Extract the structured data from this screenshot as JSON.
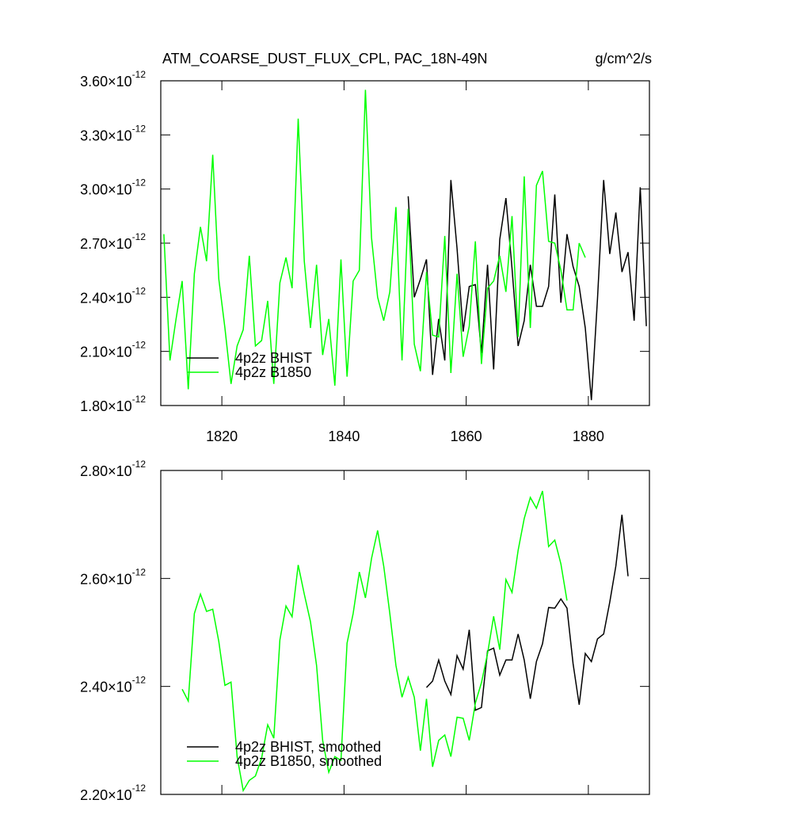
{
  "chart_data": [
    {
      "type": "line",
      "title": "ATM_COARSE_DUST_FLUX_CPL, PAC_18N-49N",
      "units": "g/cm^2/s",
      "xlim": [
        1810,
        1890
      ],
      "xticks": [
        1820,
        1840,
        1860,
        1880
      ],
      "show_xtick_labels": true,
      "ylim": [
        1.8e-12,
        3.6e-12
      ],
      "yticks": [
        {
          "value": 1.8e-12,
          "label": "1.80×10^-12"
        },
        {
          "value": 2.1e-12,
          "label": "2.10×10^-12"
        },
        {
          "value": 2.4e-12,
          "label": "2.40×10^-12"
        },
        {
          "value": 2.7e-12,
          "label": "2.70×10^-12"
        },
        {
          "value": 3e-12,
          "label": "3.00×10^-12"
        },
        {
          "value": 3.3e-12,
          "label": "3.30×10^-12"
        },
        {
          "value": 3.6e-12,
          "label": "3.60×10^-12"
        }
      ],
      "legend": "lower left",
      "series": [
        {
          "name": "4p2z BHIST",
          "color": "#000000",
          "x": [
            1850.5,
            1851.5,
            1852.5,
            1853.5,
            1854.5,
            1855.5,
            1856.5,
            1857.5,
            1858.5,
            1859.5,
            1860.5,
            1861.5,
            1862.5,
            1863.5,
            1864.5,
            1865.5,
            1866.5,
            1867.5,
            1868.5,
            1869.5,
            1870.5,
            1871.5,
            1872.5,
            1873.5,
            1874.5,
            1875.5,
            1876.5,
            1877.5,
            1878.5,
            1879.5,
            1880.5,
            1881.5,
            1882.5,
            1883.5,
            1884.5,
            1885.5,
            1886.5,
            1887.5,
            1888.5,
            1889.5
          ],
          "values": [
            2.96e-12,
            2.4e-12,
            2.5e-12,
            2.61e-12,
            1.97e-12,
            2.28e-12,
            2.05e-12,
            3.05e-12,
            2.67e-12,
            2.21e-12,
            2.46e-12,
            2.47e-12,
            2.09e-12,
            2.58e-12,
            2e-12,
            2.72e-12,
            2.95e-12,
            2.56e-12,
            2.13e-12,
            2.27e-12,
            2.58e-12,
            2.35e-12,
            2.35e-12,
            2.46e-12,
            2.97e-12,
            2.37e-12,
            2.75e-12,
            2.57e-12,
            2.46e-12,
            2.23e-12,
            1.83e-12,
            2.39e-12,
            3.05e-12,
            2.64e-12,
            2.87e-12,
            2.54e-12,
            2.65e-12,
            2.27e-12,
            3.01e-12,
            2.24e-12
          ]
        },
        {
          "name": "4p2z B1850",
          "color": "#00ff00",
          "x": [
            1810.5,
            1811.5,
            1812.5,
            1813.5,
            1814.5,
            1815.5,
            1816.5,
            1817.5,
            1818.5,
            1819.5,
            1820.5,
            1821.5,
            1822.5,
            1823.5,
            1824.5,
            1825.5,
            1826.5,
            1827.5,
            1828.5,
            1829.5,
            1830.5,
            1831.5,
            1832.5,
            1833.5,
            1834.5,
            1835.5,
            1836.5,
            1837.5,
            1838.5,
            1839.5,
            1840.5,
            1841.5,
            1842.5,
            1843.5,
            1844.5,
            1845.5,
            1846.5,
            1847.5,
            1848.5,
            1849.5,
            1850.5,
            1851.5,
            1852.5,
            1853.5,
            1854.5,
            1855.5,
            1856.5,
            1857.5,
            1858.5,
            1859.5,
            1860.5,
            1861.5,
            1862.5,
            1863.5,
            1864.5,
            1865.5,
            1866.5,
            1867.5,
            1868.5,
            1869.5,
            1870.5,
            1871.5,
            1872.5,
            1873.5,
            1874.5,
            1875.5,
            1876.5,
            1877.5,
            1878.5,
            1879.5
          ],
          "values": [
            2.75e-12,
            2.05e-12,
            2.28e-12,
            2.49e-12,
            1.89e-12,
            2.53e-12,
            2.79e-12,
            2.6e-12,
            3.19e-12,
            2.5e-12,
            2.23e-12,
            1.92e-12,
            2.13e-12,
            2.22e-12,
            2.63e-12,
            2.13e-12,
            2.16e-12,
            2.38e-12,
            1.92e-12,
            2.48e-12,
            2.62e-12,
            2.45e-12,
            3.39e-12,
            2.6e-12,
            2.23e-12,
            2.58e-12,
            2.08e-12,
            2.28e-12,
            1.91e-12,
            2.61e-12,
            1.96e-12,
            2.49e-12,
            2.55e-12,
            3.55e-12,
            2.73e-12,
            2.4e-12,
            2.27e-12,
            2.43e-12,
            2.9e-12,
            2.05e-12,
            2.89e-12,
            2.14e-12,
            1.99e-12,
            2.54e-12,
            2.19e-12,
            2.18e-12,
            2.74e-12,
            1.98e-12,
            2.53e-12,
            2.07e-12,
            2.24e-12,
            2.71e-12,
            2.03e-12,
            2.45e-12,
            2.49e-12,
            2.63e-12,
            2.43e-12,
            2.85e-12,
            2.18e-12,
            3.07e-12,
            2.23e-12,
            3.02e-12,
            3.1e-12,
            2.71e-12,
            2.7e-12,
            2.55e-12,
            2.33e-12,
            2.33e-12,
            2.7e-12,
            2.62e-12
          ]
        }
      ]
    },
    {
      "type": "line",
      "xlim": [
        1810,
        1890
      ],
      "xticks": [
        1820,
        1840,
        1860,
        1880
      ],
      "show_xtick_labels": false,
      "ylim": [
        2.2e-12,
        2.8e-12
      ],
      "yticks": [
        {
          "value": 2.2e-12,
          "label": "2.20×10^-12"
        },
        {
          "value": 2.4e-12,
          "label": "2.40×10^-12"
        },
        {
          "value": 2.6e-12,
          "label": "2.60×10^-12"
        },
        {
          "value": 2.8e-12,
          "label": "2.80×10^-12"
        }
      ],
      "legend": "lower left",
      "series": [
        {
          "name": "4p2z BHIST, smoothed",
          "color": "#000000",
          "x": [
            1853.5,
            1854.5,
            1855.5,
            1856.5,
            1857.5,
            1858.5,
            1859.5,
            1860.5,
            1861.5,
            1862.5,
            1863.5,
            1864.5,
            1865.5,
            1866.5,
            1867.5,
            1868.5,
            1869.5,
            1870.5,
            1871.5,
            1872.5,
            1873.5,
            1874.5,
            1875.5,
            1876.5,
            1877.5,
            1878.5,
            1879.5,
            1880.5,
            1881.5,
            1882.5,
            1883.5,
            1884.5,
            1885.5,
            1886.5
          ],
          "values": [
            2.398e-12,
            2.41e-12,
            2.449e-12,
            2.41e-12,
            2.385e-12,
            2.457e-12,
            2.432e-12,
            2.505e-12,
            2.356e-12,
            2.361e-12,
            2.466e-12,
            2.471e-12,
            2.421e-12,
            2.449e-12,
            2.449e-12,
            2.497e-12,
            2.449e-12,
            2.377e-12,
            2.446e-12,
            2.479e-12,
            2.546e-12,
            2.545e-12,
            2.562e-12,
            2.545e-12,
            2.442e-12,
            2.366e-12,
            2.461e-12,
            2.446e-12,
            2.488e-12,
            2.497e-12,
            2.556e-12,
            2.623e-12,
            2.718e-12,
            2.604e-12
          ]
        },
        {
          "name": "4p2z B1850, smoothed",
          "color": "#00ff00",
          "x": [
            1813.5,
            1814.5,
            1815.5,
            1816.5,
            1817.5,
            1818.5,
            1819.5,
            1820.5,
            1821.5,
            1822.5,
            1823.5,
            1824.5,
            1825.5,
            1826.5,
            1827.5,
            1828.5,
            1829.5,
            1830.5,
            1831.5,
            1832.5,
            1833.5,
            1834.5,
            1835.5,
            1836.5,
            1837.5,
            1838.5,
            1839.5,
            1840.5,
            1841.5,
            1842.5,
            1843.5,
            1844.5,
            1845.5,
            1846.5,
            1847.5,
            1848.5,
            1849.5,
            1850.5,
            1851.5,
            1852.5,
            1853.5,
            1854.5,
            1855.5,
            1856.5,
            1857.5,
            1858.5,
            1859.5,
            1860.5,
            1861.5,
            1862.5,
            1863.5,
            1864.5,
            1865.5,
            1866.5,
            1867.5,
            1868.5,
            1869.5,
            1870.5,
            1871.5,
            1872.5,
            1873.5,
            1874.5,
            1875.5,
            1876.5
          ],
          "values": [
            2.395e-12,
            2.373e-12,
            2.535e-12,
            2.571e-12,
            2.539e-12,
            2.543e-12,
            2.483e-12,
            2.402e-12,
            2.408e-12,
            2.27e-12,
            2.207e-12,
            2.226e-12,
            2.234e-12,
            2.267e-12,
            2.329e-12,
            2.304e-12,
            2.486e-12,
            2.549e-12,
            2.529e-12,
            2.625e-12,
            2.571e-12,
            2.52e-12,
            2.439e-12,
            2.3e-12,
            2.241e-12,
            2.27e-12,
            2.263e-12,
            2.48e-12,
            2.535e-12,
            2.612e-12,
            2.564e-12,
            2.637e-12,
            2.689e-12,
            2.623e-12,
            2.535e-12,
            2.439e-12,
            2.38e-12,
            2.417e-12,
            2.38e-12,
            2.281e-12,
            2.377e-12,
            2.251e-12,
            2.3e-12,
            2.31e-12,
            2.27e-12,
            2.343e-12,
            2.341e-12,
            2.3e-12,
            2.369e-12,
            2.407e-12,
            2.461e-12,
            2.53e-12,
            2.468e-12,
            2.598e-12,
            2.574e-12,
            2.652e-12,
            2.711e-12,
            2.75e-12,
            2.73e-12,
            2.762e-12,
            2.659e-12,
            2.671e-12,
            2.627e-12,
            2.559e-12
          ]
        }
      ]
    }
  ]
}
